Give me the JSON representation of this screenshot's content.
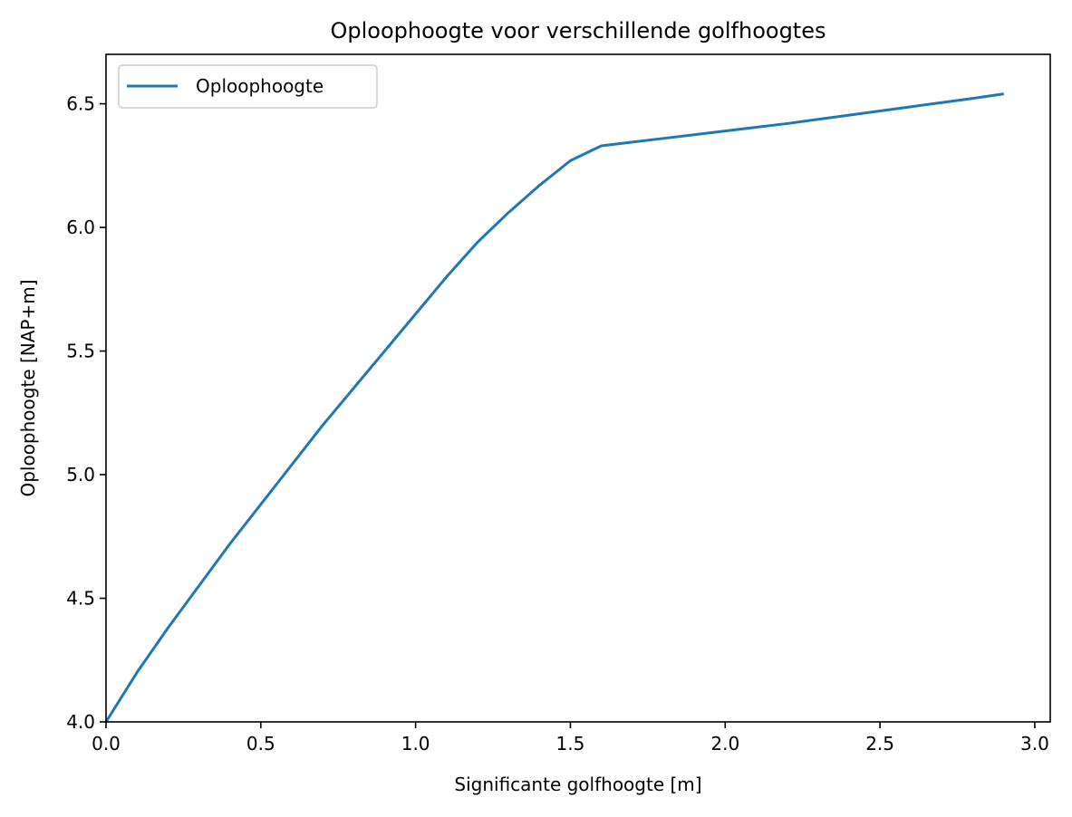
{
  "chart_data": {
    "type": "line",
    "title": "Oploophoogte voor verschillende golfhoogtes",
    "xlabel": "Significante golfhoogte [m]",
    "ylabel": "Oploophoogte [NAP+m]",
    "xlim": [
      0.0,
      3.05
    ],
    "ylim": [
      4.0,
      6.7
    ],
    "xticks": [
      0.0,
      0.5,
      1.0,
      1.5,
      2.0,
      2.5,
      3.0
    ],
    "xtick_labels": [
      "0.0",
      "0.5",
      "1.0",
      "1.5",
      "2.0",
      "2.5",
      "3.0"
    ],
    "yticks": [
      4.0,
      4.5,
      5.0,
      5.5,
      6.0,
      6.5
    ],
    "ytick_labels": [
      "4.0",
      "4.5",
      "5.0",
      "5.5",
      "6.0",
      "6.5"
    ],
    "grid": false,
    "legend_position": "top-left",
    "series": [
      {
        "name": "Oploophoogte",
        "color": "#1f77b4",
        "x": [
          0.0,
          0.1,
          0.2,
          0.3,
          0.4,
          0.5,
          0.6,
          0.7,
          0.8,
          0.9,
          1.0,
          1.1,
          1.2,
          1.3,
          1.4,
          1.5,
          1.6,
          1.7,
          1.8,
          1.9,
          2.0,
          2.1,
          2.2,
          2.3,
          2.4,
          2.5,
          2.6,
          2.7,
          2.8,
          2.9
        ],
        "y": [
          4.0,
          4.2,
          4.38,
          4.55,
          4.72,
          4.88,
          5.04,
          5.2,
          5.35,
          5.5,
          5.65,
          5.8,
          5.94,
          6.06,
          6.17,
          6.27,
          6.33,
          6.345,
          6.36,
          6.375,
          6.39,
          6.405,
          6.42,
          6.437,
          6.454,
          6.471,
          6.488,
          6.505,
          6.522,
          6.54
        ]
      }
    ]
  }
}
